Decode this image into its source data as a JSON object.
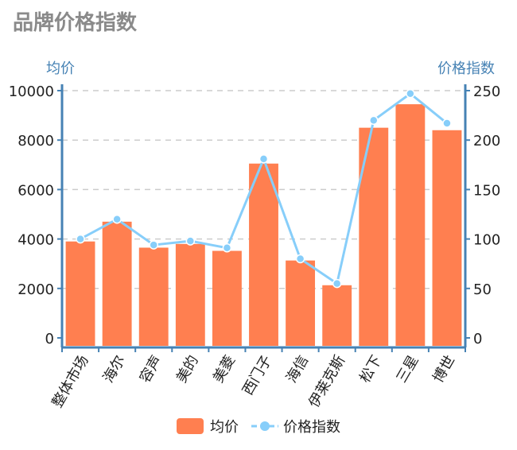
{
  "page": {
    "title": "品牌价格指数"
  },
  "chart_data": {
    "type": "bar",
    "title": "",
    "categories": [
      "整体市场",
      "海尔",
      "容声",
      "美的",
      "美菱",
      "西门子",
      "海信",
      "伊莱克斯",
      "松下",
      "三星",
      "博世"
    ],
    "series": [
      {
        "name": "均价",
        "type": "bar",
        "axis": "left",
        "values": [
          3900,
          4700,
          3650,
          3800,
          3520,
          7050,
          3130,
          2130,
          8500,
          9450,
          8400
        ]
      },
      {
        "name": "价格指数",
        "type": "line",
        "axis": "right",
        "values": [
          100,
          120,
          94,
          98,
          91,
          181,
          80,
          55,
          220,
          247,
          217
        ]
      }
    ],
    "y_left": {
      "label": "均价",
      "min": 0,
      "max": 10000,
      "ticks": [
        0,
        2000,
        4000,
        6000,
        8000,
        10000
      ]
    },
    "y_right": {
      "label": "价格指数",
      "min": 0,
      "max": 250,
      "ticks": [
        0,
        50,
        100,
        150,
        200,
        250
      ]
    },
    "grid": true,
    "legend_position": "bottom",
    "colors": {
      "bar": "#ff7f50",
      "line": "#87cefa",
      "axis": "#4682b4",
      "grid": "#cccccc"
    }
  }
}
